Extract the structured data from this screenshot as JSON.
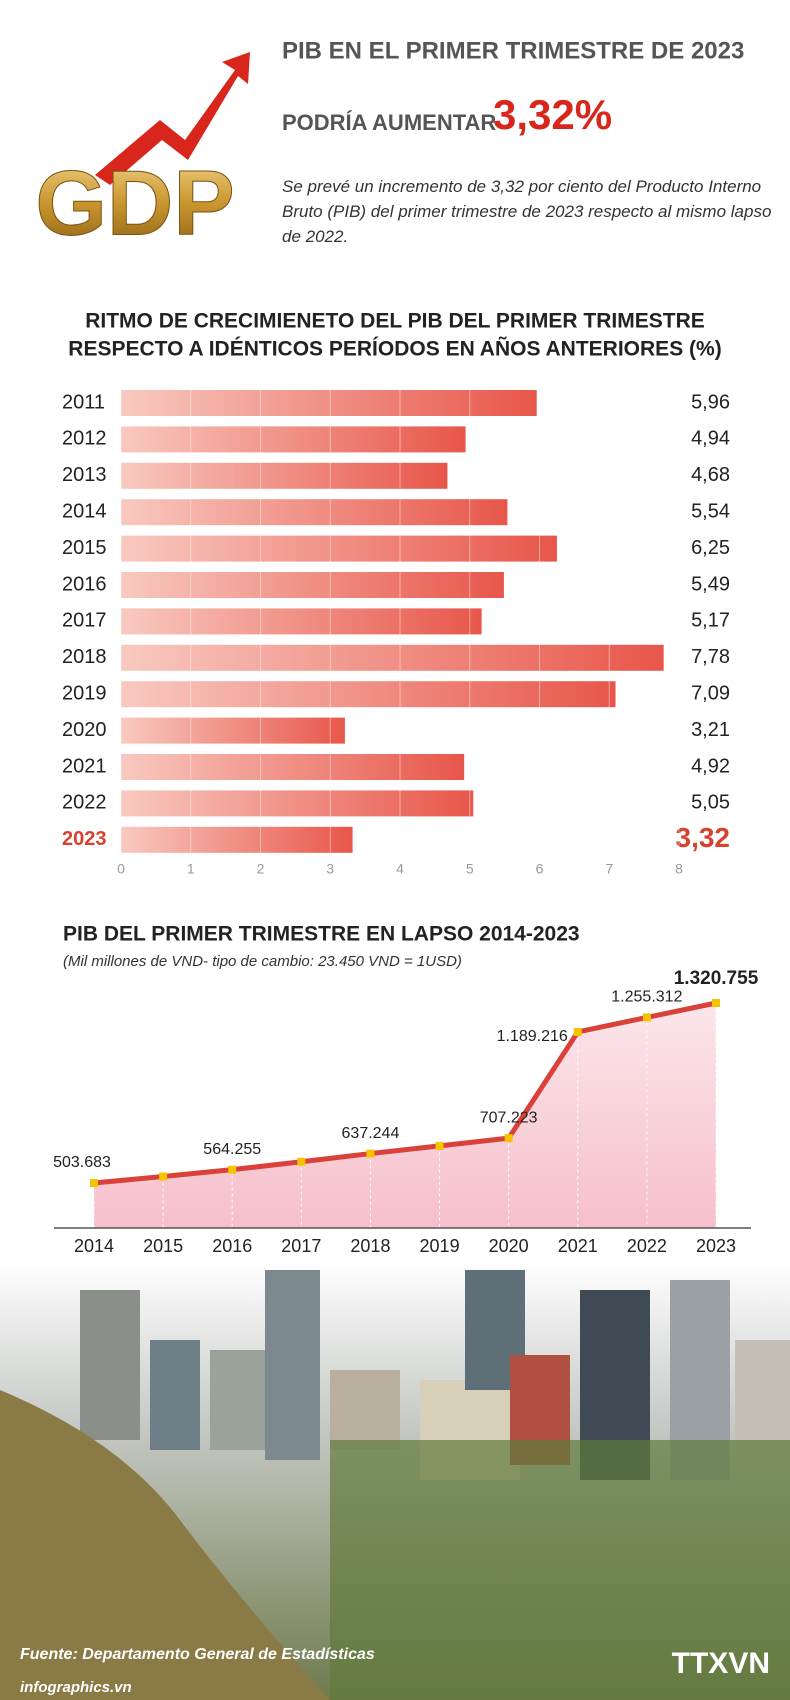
{
  "header": {
    "logo_text": "GDP",
    "title": "PIB EN EL PRIMER TRIMESTRE  DE 2023",
    "subtitle": "PODRÍA AUMENTAR",
    "highlight": "3,32%",
    "description": "Se prevé un incremento de 3,32 por ciento del Producto Interno Bruto (PIB) del primer trimestre de 2023 respecto al mismo lapso de 2022."
  },
  "chart_data": [
    {
      "type": "hbar",
      "title": "RITMO DE CRECIMIENETO DEL PIB DEL PRIMER TRIMESTRE",
      "subtitle": "RESPECTO A IDÉNTICOS PERÍODOS EN AÑOS ANTERIORES (%)",
      "categories": [
        "2011",
        "2012",
        "2013",
        "2014",
        "2015",
        "2016",
        "2017",
        "2018",
        "2019",
        "2020",
        "2021",
        "2022",
        "2023"
      ],
      "values": [
        5.96,
        4.94,
        4.68,
        5.54,
        6.25,
        5.49,
        5.17,
        7.78,
        7.09,
        3.21,
        4.92,
        5.05,
        3.32
      ],
      "value_labels": [
        "5,96",
        "4,94",
        "4,68",
        "5,54",
        "6,25",
        "5,49",
        "5,17",
        "7,78",
        "7,09",
        "3,21",
        "4,92",
        "5,05",
        "3,32"
      ],
      "color": "#e8564a",
      "highlight_category": "2023",
      "highlight_color": "#d9412f",
      "xlim": [
        0,
        8
      ],
      "xticks": [
        0,
        1,
        2,
        3,
        4,
        5,
        6,
        7,
        8
      ],
      "grid": true
    },
    {
      "type": "area",
      "title": "PIB DEL PRIMER TRIMESTRE EN LAPSO 2014-2023",
      "subtitle": "(Mil millones de VND- tipo de cambio: 23.450 VND = 1USD)",
      "categories": [
        "2014",
        "2015",
        "2016",
        "2017",
        "2018",
        "2019",
        "2020",
        "2021",
        "2022",
        "2023"
      ],
      "values": [
        503683,
        533000,
        564255,
        600000,
        637244,
        672000,
        707223,
        1189216,
        1255312,
        1320755
      ],
      "value_labels": [
        "503.683",
        null,
        "564.255",
        null,
        "637.244",
        null,
        "707.223",
        "1.189.216",
        "1.255.312",
        "1.320.755"
      ],
      "color": "#d9413a",
      "marker_color": "#f5c400"
    }
  ],
  "footer": {
    "source": "Fuente: Departamento General de Estadísticas",
    "site": "infographics.vn",
    "agency": "TTXVN"
  }
}
